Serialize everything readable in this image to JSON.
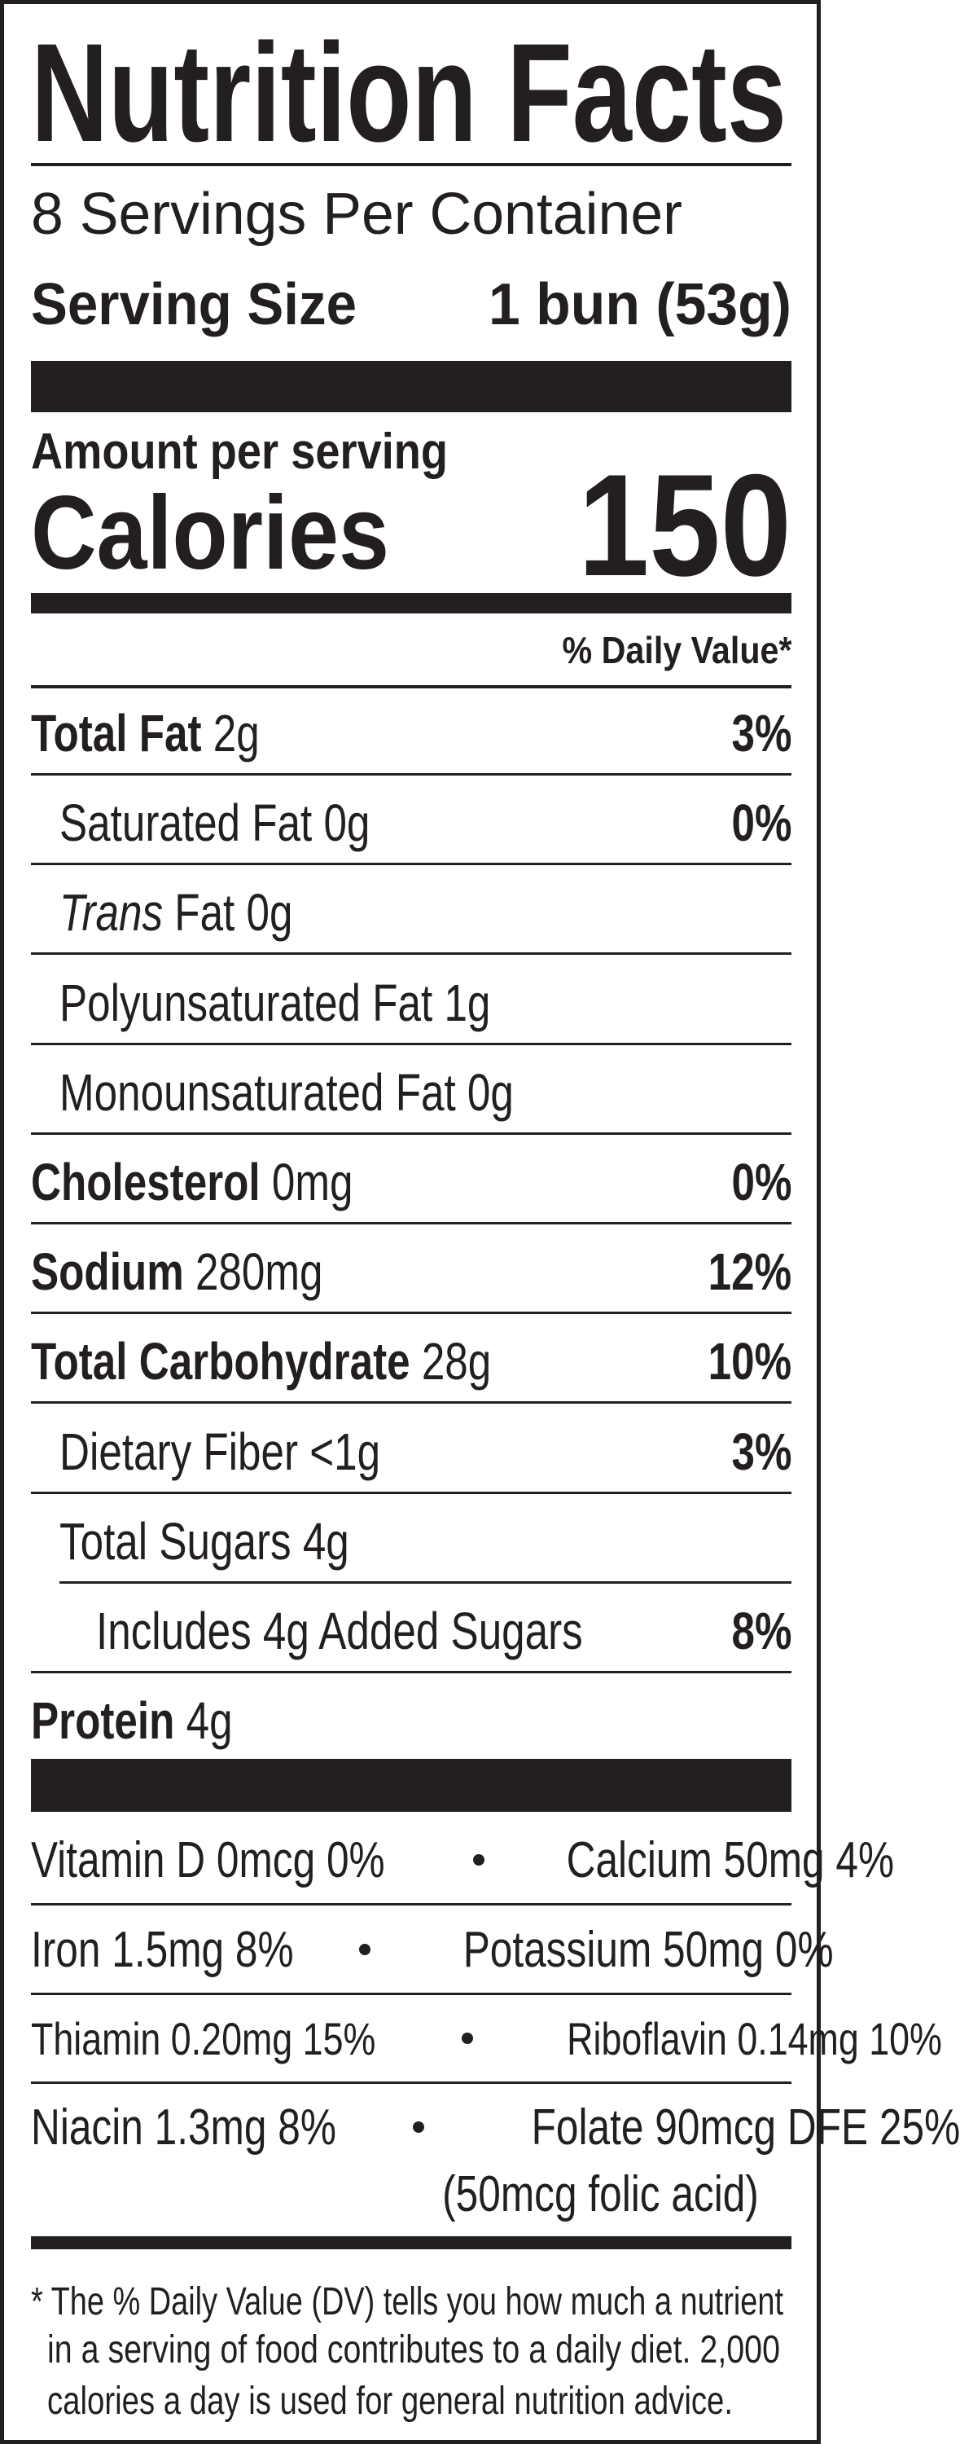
{
  "header": {
    "title": "Nutrition Facts",
    "servings": "8 Servings Per Container",
    "serving_size_label": "Serving Size",
    "serving_size_value": "1 bun (53g)",
    "amount_per_serving": "Amount per serving",
    "calories_label": "Calories",
    "calories_value": "150",
    "daily_value_header": "% Daily Value*"
  },
  "nutrients": [
    {
      "label": "Total Fat",
      "amount": "2g",
      "dv": "3%"
    },
    {
      "label": "Saturated Fat 0g",
      "dv": "0%"
    },
    {
      "label": "Trans",
      "amount": "Fat 0g"
    },
    {
      "label": "Polyunsaturated Fat 1g"
    },
    {
      "label": "Monounsaturated Fat 0g"
    },
    {
      "label": "Cholesterol",
      "amount": "0mg",
      "dv": "0%"
    },
    {
      "label": "Sodium",
      "amount": "280mg",
      "dv": "12%"
    },
    {
      "label": "Total Carbohydrate",
      "amount": "28g",
      "dv": "10%"
    },
    {
      "label": "Dietary Fiber <1g",
      "dv": "3%"
    },
    {
      "label": "Total Sugars 4g"
    },
    {
      "label": "Includes 4g Added Sugars",
      "dv": "8%"
    },
    {
      "label": "Protein",
      "amount": "4g"
    }
  ],
  "vitamins": [
    {
      "left": "Vitamin D 0mcg 0%",
      "right": "Calcium 50mg 4%"
    },
    {
      "left": "Iron 1.5mg 8%",
      "right": "Potassium 50mg 0%"
    },
    {
      "left": "Thiamin 0.20mg 15%",
      "right": "Riboflavin 0.14mg 10%"
    },
    {
      "left": "Niacin 1.3mg 8%",
      "right": "Folate 90mcg DFE 25%",
      "right_note": "(50mcg folic acid)"
    }
  ],
  "footnote": [
    "* The % Daily Value (DV) tells you how much a nutrient",
    "in a serving of food contributes to a daily diet. 2,000",
    "calories a day is used for general nutrition advice."
  ]
}
